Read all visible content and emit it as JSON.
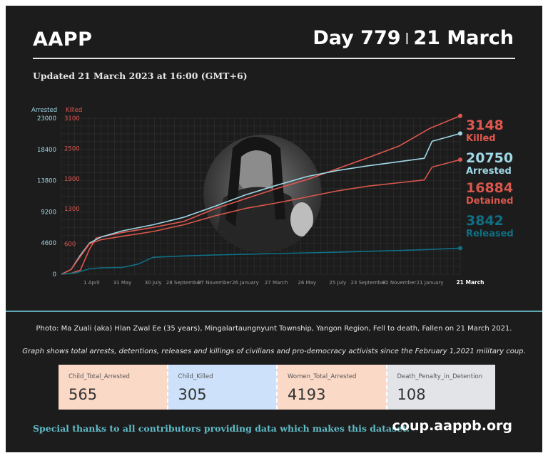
{
  "header": {
    "title": "AAPP",
    "day_label": "Day 779",
    "separator": "|",
    "date_label": "21 March"
  },
  "updated": "Updated 21 March 2023 at 16:00 (GMT+6)",
  "colors": {
    "background": "#1c1c1c",
    "killed": "#e0574f",
    "arrested": "#9fd8e6",
    "detained": "#d9574c",
    "released": "#0f6f84",
    "grid": "#444444",
    "axis_text": "#bbbbbb"
  },
  "chart_data": {
    "type": "line",
    "y_axis_left": {
      "label": "Arrested",
      "ticks": [
        "23000",
        "18400",
        "13800",
        "9200",
        "4600",
        "0"
      ],
      "range": [
        0,
        23000
      ]
    },
    "y_axis_right": {
      "label": "Killed",
      "ticks": [
        "3100",
        "2500",
        "1900",
        "1300",
        "600"
      ],
      "range": [
        0,
        3100
      ]
    },
    "x_axis": {
      "start": "2021-02-01",
      "end": "2023-03-21",
      "ticks": [
        {
          "label": "1 April",
          "date": "2021-04-01"
        },
        {
          "label": "31 May",
          "date": "2021-05-31"
        },
        {
          "label": "30 July",
          "date": "2021-07-30"
        },
        {
          "label": "28 September",
          "date": "2021-09-28"
        },
        {
          "label": "27 November",
          "date": "2021-11-27"
        },
        {
          "label": "26 January",
          "date": "2022-01-26"
        },
        {
          "label": "27 March",
          "date": "2022-03-27"
        },
        {
          "label": "26 May",
          "date": "2022-05-26"
        },
        {
          "label": "25 July",
          "date": "2022-07-25"
        },
        {
          "label": "23 September",
          "date": "2022-09-23"
        },
        {
          "label": "22 November",
          "date": "2022-11-22"
        },
        {
          "label": "21 January",
          "date": "2023-01-21"
        }
      ],
      "end_label": "21 March"
    },
    "series": [
      {
        "name": "Killed",
        "axis": "right",
        "color": "#e0574f",
        "value": 3148,
        "points": [
          [
            "2021-02-01",
            0
          ],
          [
            "2021-02-20",
            20
          ],
          [
            "2021-03-10",
            80
          ],
          [
            "2021-03-28",
            500
          ],
          [
            "2021-04-10",
            720
          ],
          [
            "2021-05-31",
            830
          ],
          [
            "2021-07-30",
            930
          ],
          [
            "2021-09-28",
            1050
          ],
          [
            "2021-11-27",
            1300
          ],
          [
            "2022-01-26",
            1500
          ],
          [
            "2022-03-27",
            1700
          ],
          [
            "2022-05-26",
            1880
          ],
          [
            "2022-07-25",
            2100
          ],
          [
            "2022-09-23",
            2320
          ],
          [
            "2022-11-22",
            2550
          ],
          [
            "2023-01-21",
            2900
          ],
          [
            "2023-03-21",
            3148
          ]
        ]
      },
      {
        "name": "Arrested",
        "axis": "left",
        "color": "#9fd8e6",
        "value": 20750,
        "points": [
          [
            "2021-02-01",
            0
          ],
          [
            "2021-02-20",
            700
          ],
          [
            "2021-03-10",
            2800
          ],
          [
            "2021-03-28",
            4600
          ],
          [
            "2021-04-20",
            5500
          ],
          [
            "2021-05-31",
            6400
          ],
          [
            "2021-07-30",
            7300
          ],
          [
            "2021-09-28",
            8400
          ],
          [
            "2021-11-27",
            10000
          ],
          [
            "2022-01-26",
            11700
          ],
          [
            "2022-03-27",
            13100
          ],
          [
            "2022-05-26",
            14400
          ],
          [
            "2022-07-25",
            15300
          ],
          [
            "2022-09-23",
            16000
          ],
          [
            "2022-11-22",
            16600
          ],
          [
            "2023-01-10",
            17100
          ],
          [
            "2023-01-25",
            19600
          ],
          [
            "2023-03-21",
            20750
          ]
        ]
      },
      {
        "name": "Detained",
        "axis": "left",
        "color": "#d9574c",
        "value": 16884,
        "points": [
          [
            "2021-02-01",
            0
          ],
          [
            "2021-02-20",
            700
          ],
          [
            "2021-03-10",
            2600
          ],
          [
            "2021-03-28",
            4500
          ],
          [
            "2021-04-20",
            5100
          ],
          [
            "2021-05-31",
            5600
          ],
          [
            "2021-07-30",
            6300
          ],
          [
            "2021-09-28",
            7300
          ],
          [
            "2021-11-27",
            8600
          ],
          [
            "2022-01-26",
            9700
          ],
          [
            "2022-03-27",
            10500
          ],
          [
            "2022-05-26",
            11400
          ],
          [
            "2022-07-25",
            12300
          ],
          [
            "2022-09-23",
            13000
          ],
          [
            "2022-11-22",
            13500
          ],
          [
            "2023-01-10",
            13900
          ],
          [
            "2023-01-25",
            15800
          ],
          [
            "2023-03-21",
            16884
          ]
        ]
      },
      {
        "name": "Released",
        "axis": "left",
        "color": "#0f6f84",
        "value": 3842,
        "points": [
          [
            "2021-02-01",
            0
          ],
          [
            "2021-03-01",
            200
          ],
          [
            "2021-03-28",
            800
          ],
          [
            "2021-04-20",
            950
          ],
          [
            "2021-05-31",
            1000
          ],
          [
            "2021-07-01",
            1500
          ],
          [
            "2021-07-30",
            2500
          ],
          [
            "2021-09-28",
            2700
          ],
          [
            "2021-11-27",
            2850
          ],
          [
            "2022-01-26",
            2950
          ],
          [
            "2022-03-27",
            3050
          ],
          [
            "2022-05-26",
            3150
          ],
          [
            "2022-07-25",
            3250
          ],
          [
            "2022-09-23",
            3380
          ],
          [
            "2022-11-22",
            3500
          ],
          [
            "2023-01-21",
            3650
          ],
          [
            "2023-03-21",
            3842
          ]
        ]
      }
    ]
  },
  "caption": "Photo: Ma Zuali (aka) Hlan Zwal Ee (35 years), Mingalartaungnyunt Township, Yangon Region, Fell to death, Fallen on 21 March 2021.",
  "description": "Graph shows total arrests, detentions, releases and killings of civilians and pro-democracy activists since the February 1,2021 military coup.",
  "stats": [
    {
      "label": "Child_Total_Arrested",
      "value": "565",
      "color": "#fbd9c7"
    },
    {
      "label": "Child_Killed",
      "value": "305",
      "color": "#cde1fb"
    },
    {
      "label": "Women_Total_Arrested",
      "value": "4193",
      "color": "#fbd9c7"
    },
    {
      "label": "Death_Penalty_in_Detention",
      "value": "108",
      "color": "#e2e4e7"
    }
  ],
  "footer": {
    "thanks": "Special thanks to all contributors providing data which makes this dataset.",
    "site": "coup.aappb.org"
  }
}
